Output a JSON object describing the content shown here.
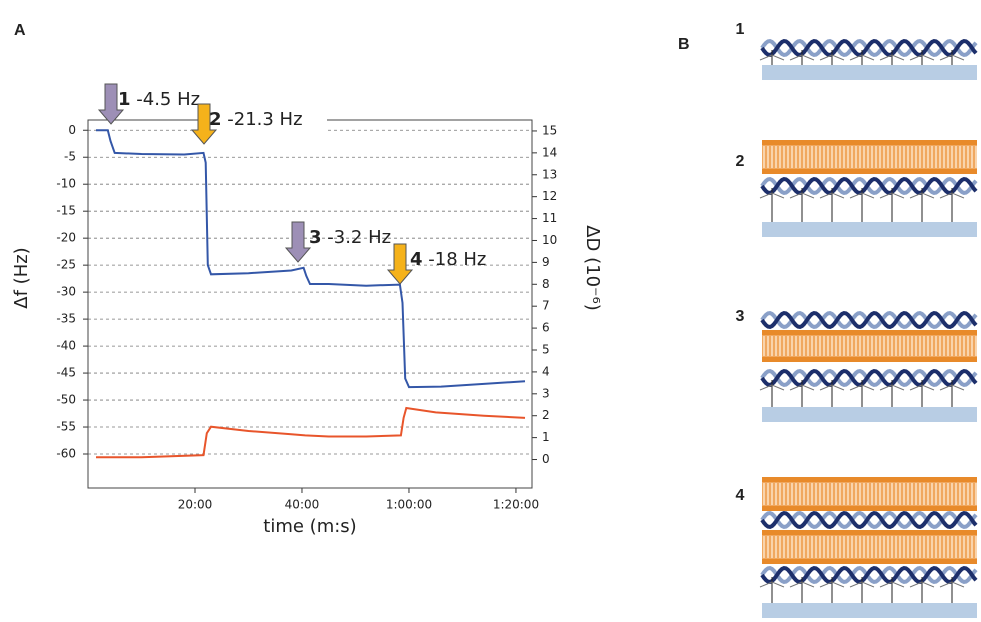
{
  "panel_labels": [
    "A",
    "B"
  ],
  "schematic": {
    "steps": [
      "1",
      "2",
      "3",
      "4"
    ]
  },
  "chart_data": {
    "type": "line",
    "xlabel": "time (m:s)",
    "ylabel": "Δf (Hz)",
    "y2label": "ΔD (10⁻⁶)",
    "xlim": [
      0,
      83
    ],
    "ylim": [
      -66.3,
      1.9
    ],
    "y2lim": [
      -1.3,
      15.5
    ],
    "xticks": [
      {
        "value": 20,
        "label": "20:00"
      },
      {
        "value": 40,
        "label": "40:00"
      },
      {
        "value": 60,
        "label": "1:00:00"
      },
      {
        "value": 80,
        "label": "1:20:00"
      }
    ],
    "yticks": [
      0,
      -5,
      -10,
      -15,
      -20,
      -25,
      -30,
      -35,
      -40,
      -45,
      -50,
      -55,
      -60
    ],
    "y2ticks": [
      15,
      14,
      13,
      12,
      11,
      10,
      9,
      8,
      7,
      6,
      5,
      4,
      3,
      2,
      1,
      0
    ],
    "grid": true,
    "series": [
      {
        "name": "Δf",
        "color": "#3457a8",
        "axis": "y",
        "x": [
          1.5,
          3.7,
          4.2,
          5,
          10,
          18,
          21.6,
          22,
          22.4,
          23,
          30,
          38,
          40.3,
          40.8,
          41.5,
          45,
          52,
          58.3,
          58.8,
          59.3,
          60,
          66,
          74,
          81.7
        ],
        "values": [
          0,
          0,
          -2,
          -4.2,
          -4.4,
          -4.5,
          -4.2,
          -6,
          -25,
          -26.7,
          -26.5,
          -26,
          -25.5,
          -27,
          -28.5,
          -28.5,
          -28.8,
          -28.6,
          -32,
          -46,
          -47.6,
          -47.5,
          -47,
          -46.5
        ]
      },
      {
        "name": "ΔD",
        "color": "#e8552b",
        "axis": "y2",
        "x": [
          1.5,
          10,
          21.6,
          22.2,
          23,
          30,
          38,
          40.6,
          45,
          52,
          58.5,
          59,
          59.5,
          65,
          74,
          81.7
        ],
        "values": [
          0.1,
          0.1,
          0.2,
          1.2,
          1.5,
          1.3,
          1.15,
          1.1,
          1.05,
          1.05,
          1.1,
          1.9,
          2.35,
          2.15,
          2.0,
          1.9
        ]
      }
    ],
    "annotations": [
      {
        "step": "1",
        "text": "-4.5 Hz",
        "color": "#9d8fb6"
      },
      {
        "step": "2",
        "text": "-21.3 Hz",
        "color": "#f5b21b"
      },
      {
        "step": "3",
        "text": "-3.2 Hz",
        "color": "#9d8fb6"
      },
      {
        "step": "4",
        "text": "-18 Hz",
        "color": "#f5b21b"
      }
    ]
  }
}
